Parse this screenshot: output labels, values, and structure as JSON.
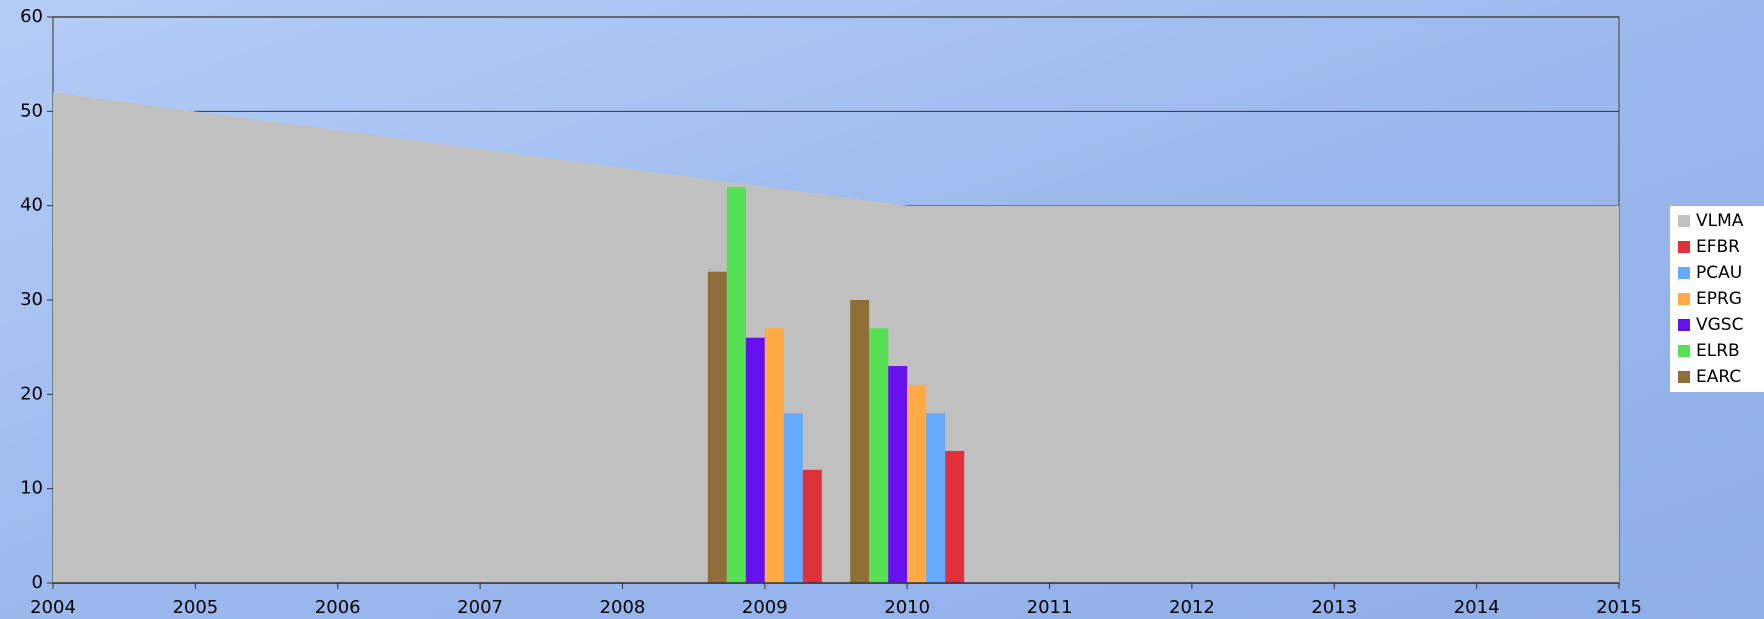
{
  "chart_data": {
    "type": "bar",
    "x": [
      2004,
      2005,
      2006,
      2007,
      2008,
      2009,
      2010,
      2011,
      2012,
      2013,
      2014,
      2015
    ],
    "xlim": [
      2004,
      2015
    ],
    "xticks": [
      2004,
      2005,
      2006,
      2007,
      2008,
      2009,
      2010,
      2011,
      2012,
      2013,
      2014,
      2015
    ],
    "ylim": [
      0,
      60
    ],
    "yticks": [
      0,
      10,
      20,
      30,
      40,
      50,
      60
    ],
    "grid": true,
    "legend": "right",
    "series": [
      {
        "name": "VLMA",
        "type": "area",
        "color": "#c0c0c0",
        "values": [
          52,
          50,
          48,
          46,
          44,
          42,
          40,
          40,
          40,
          40,
          40,
          40
        ]
      },
      {
        "name": "EFBR",
        "color": "#e0303a",
        "values": [
          null,
          null,
          null,
          null,
          null,
          12,
          14,
          null,
          null,
          null,
          null,
          null
        ]
      },
      {
        "name": "PCAU",
        "color": "#66aaff",
        "values": [
          null,
          null,
          null,
          null,
          null,
          18,
          18,
          null,
          null,
          null,
          null,
          null
        ]
      },
      {
        "name": "EPRG",
        "color": "#ffaa44",
        "values": [
          null,
          null,
          null,
          null,
          null,
          27,
          21,
          null,
          null,
          null,
          null,
          null
        ]
      },
      {
        "name": "VGSC",
        "color": "#6611ee",
        "values": [
          null,
          null,
          null,
          null,
          null,
          26,
          23,
          null,
          null,
          null,
          null,
          null
        ]
      },
      {
        "name": "ELRB",
        "color": "#55e055",
        "values": [
          null,
          null,
          null,
          null,
          null,
          42,
          27,
          null,
          null,
          null,
          null,
          null
        ]
      },
      {
        "name": "EARC",
        "color": "#8f6e3a",
        "values": [
          null,
          null,
          null,
          null,
          null,
          33,
          30,
          null,
          null,
          null,
          null,
          null
        ]
      }
    ]
  }
}
